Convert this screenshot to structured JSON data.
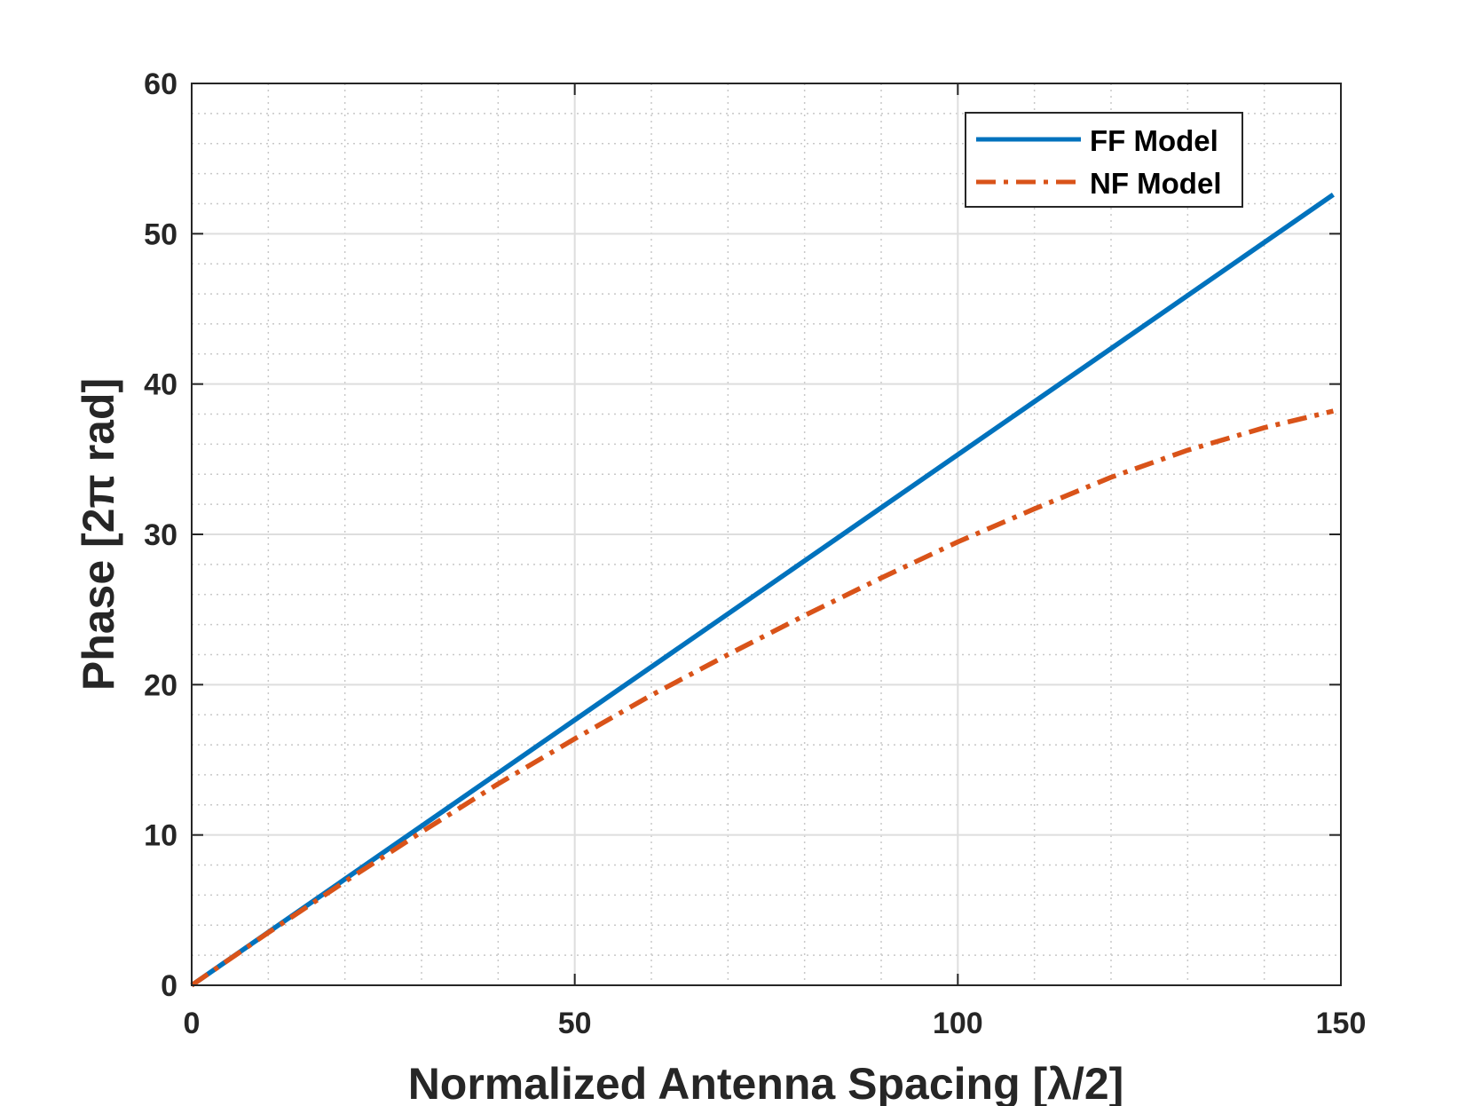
{
  "chart_data": {
    "type": "line",
    "title": "",
    "xlabel": "Normalized Antenna Spacing [λ/2]",
    "ylabel": "Phase [2π rad]",
    "xlim": [
      0,
      150
    ],
    "ylim": [
      0,
      60
    ],
    "xticks": [
      0,
      50,
      100,
      150
    ],
    "yticks": [
      0,
      10,
      20,
      30,
      40,
      50,
      60
    ],
    "x_minor_step": 10,
    "y_minor_step": 2,
    "grid": true,
    "minor_grid": true,
    "legend_position": "top-right",
    "series": [
      {
        "name": "FF Model",
        "color": "#0072BD",
        "style": "solid",
        "x": [
          0,
          149
        ],
        "y": [
          0,
          52.6
        ]
      },
      {
        "name": "NF Model",
        "color": "#D95319",
        "style": "dash-dot",
        "x": [
          0,
          10,
          20,
          30,
          40,
          50,
          60,
          70,
          80,
          90,
          100,
          110,
          120,
          130,
          140,
          149
        ],
        "y": [
          0,
          3.5,
          6.9,
          10.2,
          13.4,
          16.4,
          19.3,
          22.0,
          24.6,
          27.1,
          29.5,
          31.7,
          33.8,
          35.6,
          37.1,
          38.2
        ]
      }
    ]
  }
}
